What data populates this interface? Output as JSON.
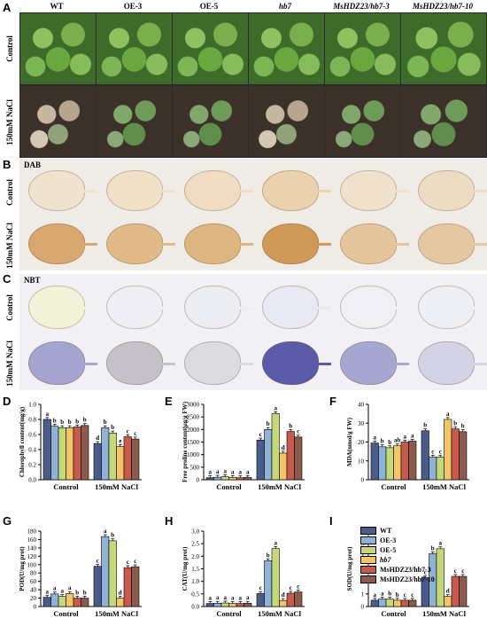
{
  "panels": {
    "a": "A",
    "b": "B",
    "c": "C",
    "d": "D",
    "e": "E",
    "f": "F",
    "g": "G",
    "h": "H",
    "i": "I"
  },
  "genotypes": [
    "WT",
    "OE-3",
    "OE-5",
    "hb7",
    "MsHDZ23/hb7-3",
    "MsHDZ23/hb7-10"
  ],
  "italic_flags": [
    false,
    false,
    false,
    true,
    true,
    true
  ],
  "row_labels": {
    "control": "Control",
    "salt": "150mM NaCl"
  },
  "stain_labels": {
    "dab": "DAB",
    "nbt": "NBT"
  },
  "legend": {
    "items": [
      "WT",
      "OE-3",
      "OE-5",
      "hb7",
      "MsHDZ23/hb7-3",
      "MsHDZ23/hb7-10"
    ],
    "italic": [
      false,
      false,
      false,
      true,
      false,
      false
    ]
  },
  "colors": {
    "WT": "#4a5d8a",
    "OE-3": "#8fb3d6",
    "OE-5": "#c5d978",
    "hb7": "#f3c567",
    "MsHDZ23/hb7-3": "#c65b4d",
    "MsHDZ23/hb7-10": "#8a5a4c"
  },
  "chart_data": [
    {
      "id": "D",
      "type": "bar",
      "ylabel": "Chlorophyll content(mg/g)",
      "categories": [
        "Control",
        "150mM NaCl"
      ],
      "ylim": [
        0,
        1.0
      ],
      "yticks": [
        "0.0",
        "0.2",
        "0.4",
        "0.6",
        "0.8",
        "1.0"
      ],
      "series_values": [
        [
          0.8,
          0.48
        ],
        [
          0.71,
          0.69
        ],
        [
          0.69,
          0.62
        ],
        [
          0.69,
          0.44
        ],
        [
          0.7,
          0.57
        ],
        [
          0.72,
          0.54
        ]
      ],
      "sig": [
        [
          "a",
          "d"
        ],
        [
          "b",
          "b"
        ],
        [
          "b",
          "b"
        ],
        [
          "b",
          "e"
        ],
        [
          "b",
          "c"
        ],
        [
          "b",
          "c"
        ]
      ]
    },
    {
      "id": "E",
      "type": "bar",
      "ylabel": "Free proline content(μg/g FW)",
      "categories": [
        "Control",
        "150mM NaCl"
      ],
      "ylim": [
        0,
        3000
      ],
      "yticks": [
        "0",
        "500",
        "1000",
        "1500",
        "2000",
        "2500",
        "3000"
      ],
      "series_values": [
        [
          80,
          1580
        ],
        [
          100,
          2000
        ],
        [
          120,
          2630
        ],
        [
          90,
          1060
        ],
        [
          80,
          1920
        ],
        [
          90,
          1700
        ]
      ],
      "sig": [
        [
          "a",
          "c"
        ],
        [
          "a",
          "b"
        ],
        [
          "a",
          "a"
        ],
        [
          "a",
          "d"
        ],
        [
          "a",
          "b"
        ],
        [
          "a",
          "c"
        ]
      ]
    },
    {
      "id": "F",
      "type": "bar",
      "ylabel": "MDA(nmol/g FW)",
      "categories": [
        "Control",
        "150mM NaCl"
      ],
      "ylim": [
        0,
        40
      ],
      "yticks": [
        "0",
        "10",
        "20",
        "30",
        "40"
      ],
      "series_values": [
        [
          19.5,
          26
        ],
        [
          17.5,
          12
        ],
        [
          17,
          12
        ],
        [
          18,
          32
        ],
        [
          20,
          27
        ],
        [
          20.5,
          25.5
        ]
      ],
      "sig": [
        [
          "a",
          "b"
        ],
        [
          "b",
          "c"
        ],
        [
          "b",
          "c"
        ],
        [
          "ab",
          "a"
        ],
        [
          "a",
          "b"
        ],
        [
          "a",
          "b"
        ]
      ]
    },
    {
      "id": "G",
      "type": "bar",
      "ylabel": "POD(U/mg prot)",
      "categories": [
        "Control",
        "150mM NaCl"
      ],
      "ylim": [
        0,
        180
      ],
      "yticks": [
        "0",
        "20",
        "40",
        "60",
        "80",
        "100",
        "120",
        "140",
        "160",
        "180"
      ],
      "series_values": [
        [
          22,
          96
        ],
        [
          30,
          167
        ],
        [
          24,
          157
        ],
        [
          31,
          20
        ],
        [
          20,
          93
        ],
        [
          20,
          95
        ]
      ],
      "sig": [
        [
          "a",
          "c"
        ],
        [
          "a",
          "a"
        ],
        [
          "a",
          "b"
        ],
        [
          "a",
          "d"
        ],
        [
          "b",
          "c"
        ],
        [
          "b",
          "c"
        ]
      ]
    },
    {
      "id": "H",
      "type": "bar",
      "ylabel": "CAT(U/mg prot)",
      "categories": [
        "Control",
        "150mM NaCl"
      ],
      "ylim": [
        0,
        3.0
      ],
      "yticks": [
        "0.0",
        "0.5",
        "1.0",
        "1.5",
        "2.0",
        "2.5",
        "3.0"
      ],
      "series_values": [
        [
          0.12,
          0.52
        ],
        [
          0.13,
          1.82
        ],
        [
          0.14,
          2.31
        ],
        [
          0.12,
          0.24
        ],
        [
          0.12,
          0.53
        ],
        [
          0.13,
          0.58
        ]
      ],
      "sig": [
        [
          "a",
          "c"
        ],
        [
          "a",
          "b"
        ],
        [
          "a",
          "a"
        ],
        [
          "a",
          "d"
        ],
        [
          "a",
          "c"
        ],
        [
          "a",
          "c"
        ]
      ]
    },
    {
      "id": "I",
      "type": "bar",
      "ylabel": "SOD(U/mg prot)",
      "categories": [
        "Control",
        "150mM NaCl"
      ],
      "ylim": [
        0,
        6
      ],
      "yticks": [
        "0",
        "1",
        "2",
        "3",
        "4",
        "5",
        "6"
      ],
      "series_values": [
        [
          0.5,
          2.3
        ],
        [
          0.6,
          4.2
        ],
        [
          0.6,
          4.6
        ],
        [
          0.5,
          0.8
        ],
        [
          0.5,
          2.4
        ],
        [
          0.5,
          2.4
        ]
      ],
      "sig": [
        [
          "a",
          "c"
        ],
        [
          "a",
          "b"
        ],
        [
          "b",
          "a"
        ],
        [
          "b",
          "d"
        ],
        [
          "c",
          "c"
        ],
        [
          "c",
          "c"
        ]
      ]
    }
  ]
}
